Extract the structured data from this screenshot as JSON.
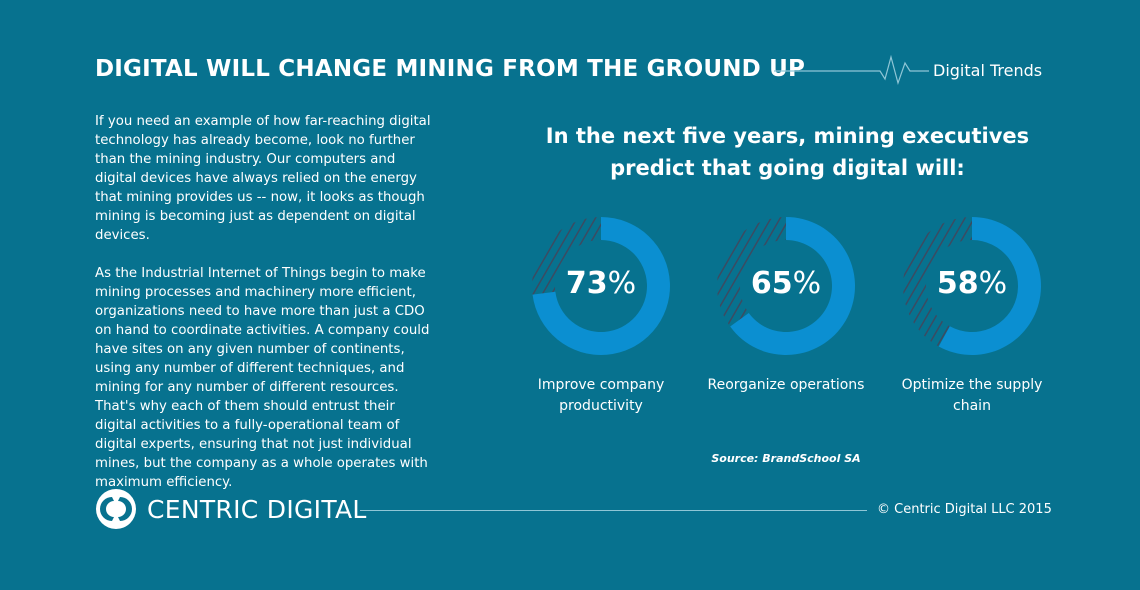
{
  "header": {
    "title": "DIGITAL WILL CHANGE MINING FROM THE GROUND UP",
    "tag": "Digital Trends"
  },
  "body": {
    "paragraphs": [
      "If you need an example of how far-reaching digital technology has already become, look no further than the mining industry. Our computers and digital devices have always relied on the energy that mining provides us -- now, it looks as though mining is becoming just as dependent on digital devices.",
      "As the Industrial Internet of Things begin to make mining processes and machinery more efficient, organizations need to have more than just a CDO on hand to coordinate activities. A company could have sites on any given number of continents, using any number of different techniques, and mining for any number of different resources. That's why each of them should entrust their digital activities to a fully-operational team of digital experts, ensuring that not just individual mines, but the company as a whole operates with maximum efficiency."
    ]
  },
  "chart_data": {
    "type": "pie",
    "title": "In the next five years, mining executives predict that going digital will:",
    "source": "Source: BrandSchool SA",
    "unit": "%",
    "categories": [
      "Improve company productivity",
      "Reorganize operations",
      "Optimize the supply chain"
    ],
    "values": [
      73,
      65,
      58
    ],
    "value_labels": [
      "73",
      "65",
      "58"
    ],
    "colors": {
      "filled": "#0b8fd1",
      "remainder_hatch": "#3b4b62",
      "background": "#07728f"
    }
  },
  "footer": {
    "logo": "CENTRIC DIGITAL",
    "copyright": "© Centric Digital LLC 2015"
  }
}
